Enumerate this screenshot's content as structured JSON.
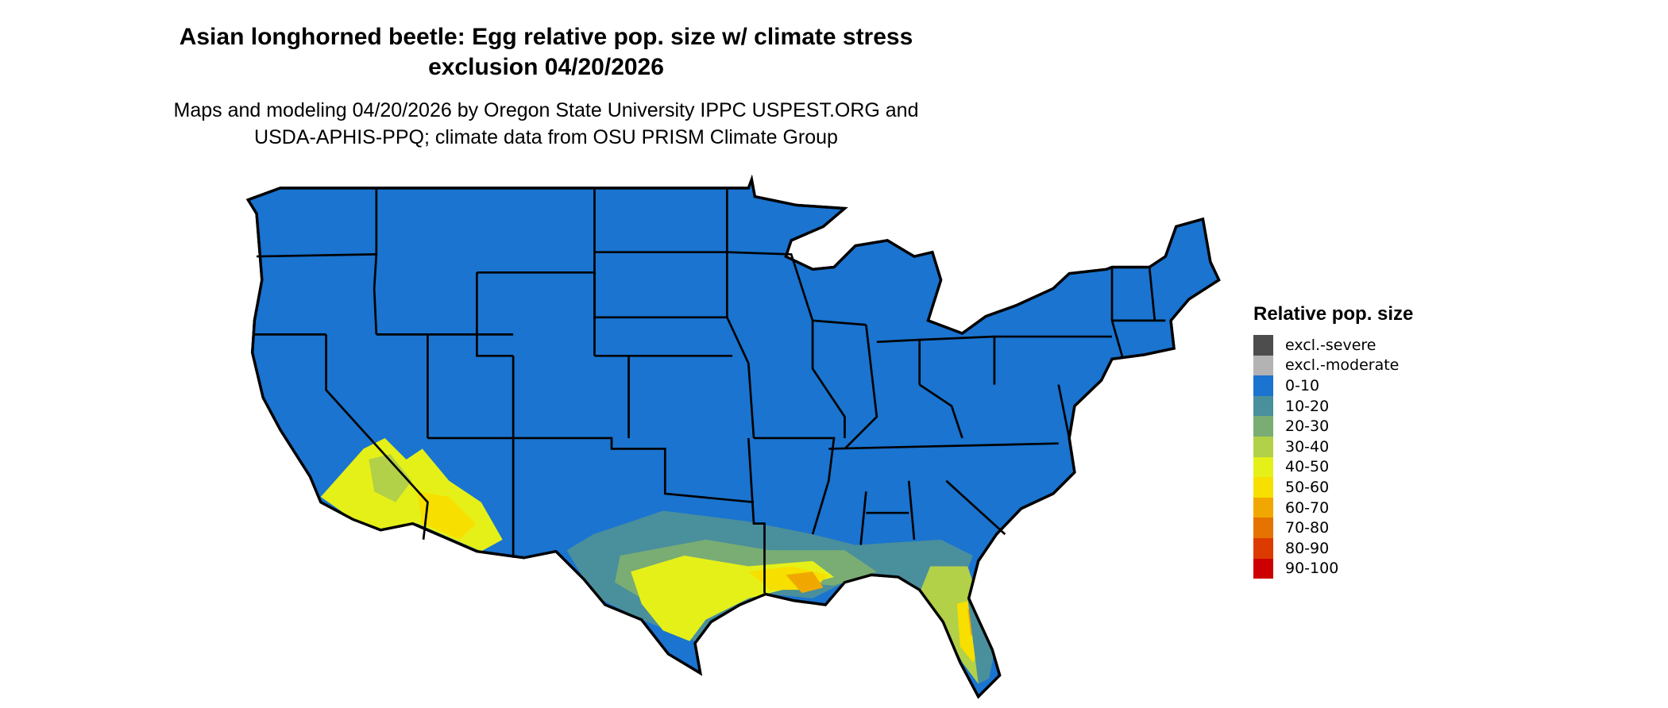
{
  "title": "Asian longhorned beetle: Egg relative pop. size w/ climate stress exclusion 04/20/2026",
  "title_lines": [
    "Asian longhorned beetle: Egg relative pop. size w/ climate stress",
    "exclusion 04/20/2026"
  ],
  "subtitle_lines": [
    "Maps and modeling 04/20/2026 by Oregon State University IPPC USPEST.ORG and",
    "USDA-APHIS-PPQ; climate data from OSU PRISM Climate Group"
  ],
  "chart_data": {
    "type": "choropleth map",
    "region": "Contiguous United States",
    "legend": {
      "title": "Relative pop. size",
      "placement": "right",
      "entries": [
        {
          "label": "excl.-severe",
          "color": "#4d4d4d"
        },
        {
          "label": "excl.-moderate",
          "color": "#b3b3b3"
        },
        {
          "label": "0-10",
          "color": "#1a74d0"
        },
        {
          "label": "10-20",
          "color": "#4a8f9c"
        },
        {
          "label": "20-30",
          "color": "#7aad74"
        },
        {
          "label": "30-40",
          "color": "#b2d048"
        },
        {
          "label": "40-50",
          "color": "#e5f019"
        },
        {
          "label": "50-60",
          "color": "#f7df00"
        },
        {
          "label": "60-70",
          "color": "#f0a800"
        },
        {
          "label": "70-80",
          "color": "#e57300"
        },
        {
          "label": "80-90",
          "color": "#dd3a00"
        },
        {
          "label": "90-100",
          "color": "#cc0000"
        }
      ]
    },
    "dominant_class": "0-10",
    "higher_classes_regions": [
      "southern California / Arizona deserts",
      "south and coastal Texas",
      "Gulf coast Louisiana–Mississippi",
      "Florida peninsula"
    ]
  }
}
